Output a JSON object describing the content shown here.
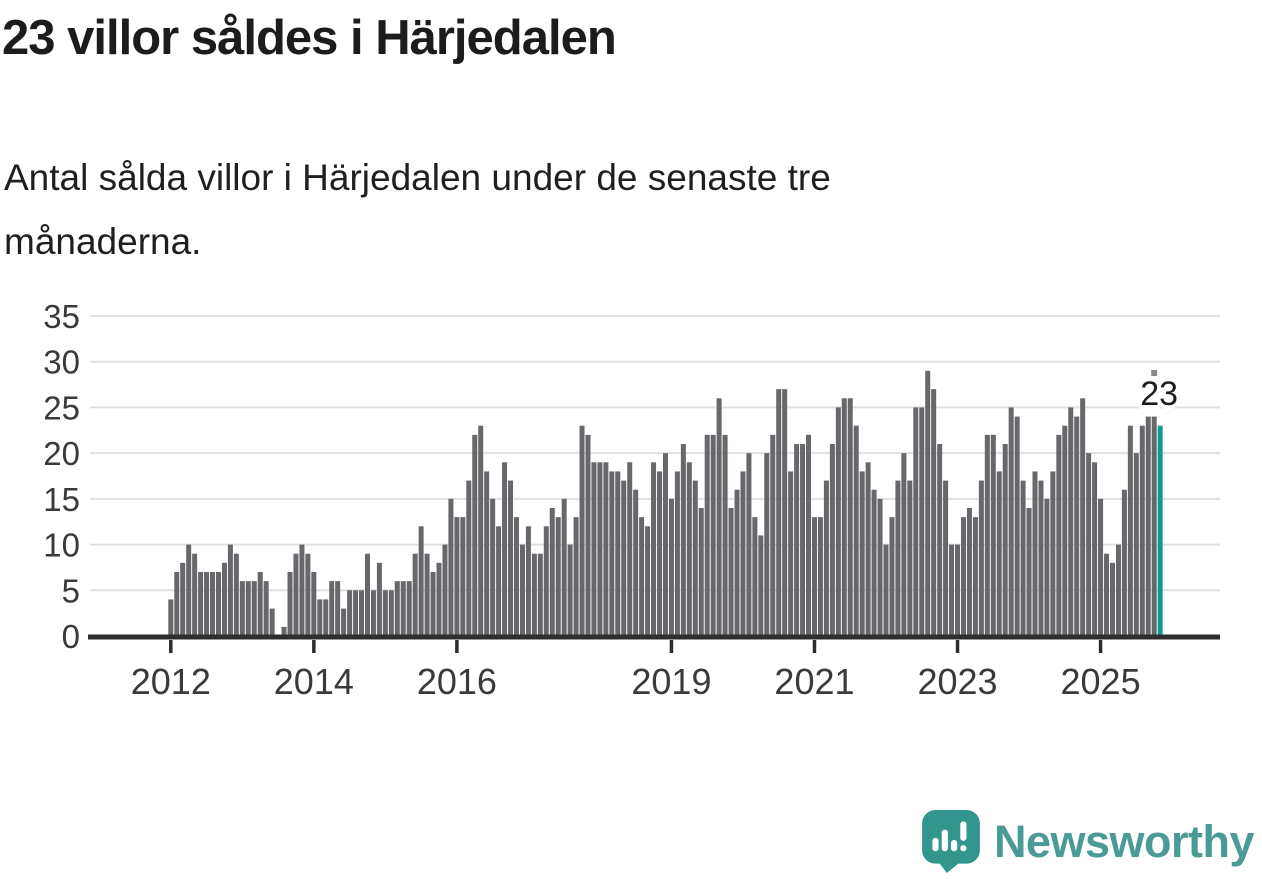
{
  "header": {
    "title": "23 villor såldes i Härjedalen",
    "subtitle_line1": "Antal sålda villor i Härjedalen under de senaste tre",
    "subtitle_line2": "månaderna."
  },
  "chart_data": {
    "type": "bar",
    "title": "23 villor såldes i Härjedalen",
    "subtitle": "Antal sålda villor i Härjedalen under de senaste tre månaderna.",
    "x_unit": "month",
    "x_start": "2012-01",
    "values": [
      4,
      7,
      8,
      10,
      9,
      7,
      7,
      7,
      7,
      8,
      10,
      9,
      6,
      6,
      6,
      7,
      6,
      3,
      0,
      1,
      7,
      9,
      10,
      9,
      7,
      4,
      4,
      6,
      6,
      3,
      5,
      5,
      5,
      9,
      5,
      8,
      5,
      5,
      6,
      6,
      6,
      9,
      12,
      9,
      7,
      8,
      10,
      15,
      13,
      13,
      17,
      22,
      23,
      18,
      15,
      12,
      19,
      17,
      13,
      10,
      12,
      9,
      9,
      12,
      14,
      13,
      15,
      10,
      13,
      23,
      22,
      19,
      19,
      19,
      18,
      18,
      17,
      19,
      16,
      13,
      12,
      19,
      18,
      20,
      15,
      18,
      21,
      19,
      17,
      14,
      22,
      22,
      26,
      22,
      14,
      16,
      18,
      20,
      13,
      11,
      20,
      22,
      27,
      27,
      18,
      21,
      21,
      22,
      13,
      13,
      17,
      21,
      25,
      26,
      26,
      23,
      18,
      19,
      16,
      15,
      10,
      13,
      17,
      20,
      17,
      25,
      25,
      29,
      27,
      21,
      17,
      10,
      10,
      13,
      14,
      13,
      17,
      22,
      22,
      18,
      21,
      25,
      24,
      17,
      14,
      18,
      17,
      15,
      18,
      22,
      23,
      25,
      24,
      26,
      20,
      19,
      15,
      9,
      8,
      10,
      16,
      23,
      20,
      23,
      24,
      24,
      23
    ],
    "highlight_last": true,
    "last_value_label": "23",
    "y_ticks": [
      0,
      5,
      10,
      15,
      20,
      25,
      30,
      35
    ],
    "ylim": [
      0,
      35
    ],
    "x_tick_years": [
      2012,
      2014,
      2016,
      2019,
      2021,
      2023,
      2025
    ],
    "grid": true,
    "legend": false,
    "colors": {
      "bar": "#67676c",
      "highlight": "#11998e",
      "grid": "#e0e0e0",
      "axis": "#2d2d2d",
      "tick_text": "#3a3a3a",
      "annotation_text": "#1d1d1b",
      "annotation_dash": "#8a8a8a"
    }
  },
  "logo": {
    "brand": "Newsworthy",
    "icon": "newsworthy-speech-bubble-chart-icon",
    "text_color": "#4a9b95",
    "bubble_color": "#33968e"
  }
}
